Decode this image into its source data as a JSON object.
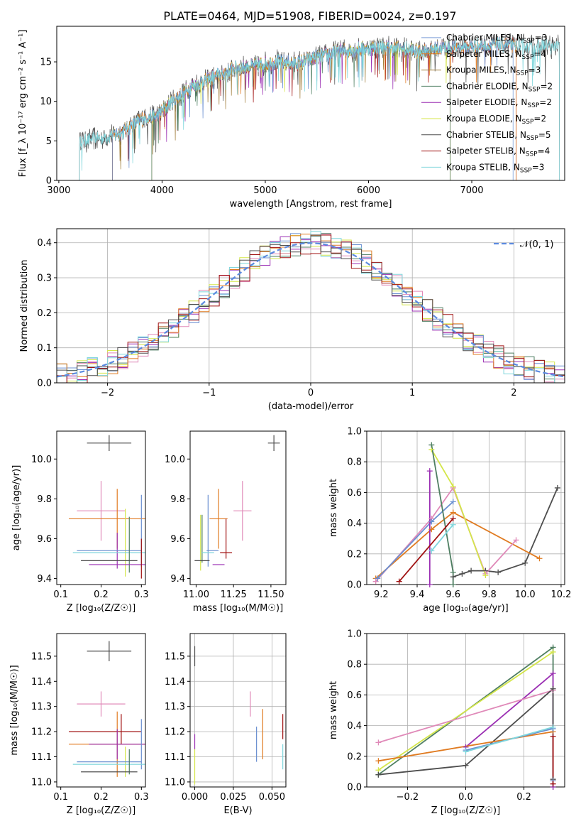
{
  "title": "PLATE=0464, MJD=51908, FIBERID=0024, z=0.197",
  "colors": {
    "chab_miles": "#6a8fd0",
    "salp_miles": "#e07b21",
    "krou_miles": "#a07d3a",
    "chab_elodie": "#4f7f62",
    "salp_elodie": "#9b2fb3",
    "krou_elodie": "#d4e64a",
    "chab_stelib": "#4d4d4d",
    "salp_stelib": "#a01212",
    "krou_stelib": "#7fd6dc",
    "pink": "#e08ab9",
    "normal": "#5b8ae0"
  },
  "legend_spectrum": [
    {
      "key": "chab_miles",
      "label": "Chabrier MILES, N",
      "n": "3"
    },
    {
      "key": "salp_miles",
      "label": "Salpeter MILES, N",
      "n": "4"
    },
    {
      "key": "krou_miles",
      "label": "Kroupa MILES, N",
      "n": "3"
    },
    {
      "key": "chab_elodie",
      "label": "Chabrier ELODIE, N",
      "n": "2"
    },
    {
      "key": "salp_elodie",
      "label": "Salpeter ELODIE, N",
      "n": "2"
    },
    {
      "key": "krou_elodie",
      "label": "Kroupa ELODIE, N",
      "n": "2"
    },
    {
      "key": "chab_stelib",
      "label": "Chabrier STELIB, N",
      "n": "5"
    },
    {
      "key": "salp_stelib",
      "label": "Salpeter STELIB, N",
      "n": "4"
    },
    {
      "key": "krou_stelib",
      "label": "Kroupa STELIB, N",
      "n": "3"
    }
  ],
  "legend_sub": "SSP",
  "legend_normal": "𝒩(0, 1)",
  "chart_data": [
    {
      "id": "spectrum",
      "type": "line",
      "xlabel": "wavelength [Angstrom, rest frame]",
      "ylabel": "Flux [f_λ 10⁻¹⁷ erg cm⁻² s⁻¹ A⁻¹]",
      "xlim": [
        2980,
        7900
      ],
      "ylim": [
        0,
        19.5
      ],
      "xticks": [
        3000,
        4000,
        5000,
        6000,
        7000
      ],
      "yticks": [
        0,
        5,
        10,
        15
      ],
      "x": [
        3200,
        3400,
        3600,
        3800,
        3950,
        4100,
        4300,
        4500,
        4700,
        4900,
        5100,
        5300,
        5500,
        5700,
        5900,
        6100,
        6300,
        6500,
        6700,
        6900,
        7100,
        7300,
        7500,
        7700,
        7850
      ],
      "y": [
        5.0,
        5.3,
        6.0,
        7.8,
        8.2,
        10.0,
        12.0,
        13.0,
        14.2,
        14.5,
        15.0,
        14.8,
        15.6,
        16.3,
        16.6,
        16.9,
        16.7,
        16.3,
        16.8,
        16.9,
        17.0,
        17.2,
        17.0,
        17.0,
        17.0
      ],
      "cutoffs": {
        "chab_miles": [
          3520,
          7400
        ],
        "salp_miles": [
          3520,
          7430
        ],
        "krou_miles": [
          3520,
          6790
        ],
        "salp_stelib": [
          3520,
          7430
        ],
        "chab_elodie": [
          3900,
          6790
        ],
        "salp_elodie": [
          3900,
          6790
        ],
        "krou_elodie": [
          3900,
          6790
        ],
        "chab_stelib": [
          3200,
          7850
        ],
        "krou_stelib": [
          3200,
          7850
        ]
      }
    },
    {
      "id": "residuals",
      "type": "step",
      "xlabel": "(data-model)/error",
      "ylabel": "Normed distribution",
      "xlim": [
        -2.5,
        2.5
      ],
      "ylim": [
        0,
        0.44
      ],
      "xticks": [
        -2,
        -1,
        0,
        1,
        2
      ],
      "yticks": [
        0.0,
        0.1,
        0.2,
        0.3,
        0.4
      ],
      "gaussian": {
        "mu": 0,
        "sigma": 1
      }
    },
    {
      "id": "age_vs_Z",
      "type": "scatter",
      "xlabel": "Z [log₁₀(Z/Z☉)]",
      "ylabel": "age  [log₁₀(age/yr)]",
      "xlim": [
        0.09,
        0.31
      ],
      "ylim": [
        9.37,
        10.14
      ],
      "xticks": [
        0.1,
        0.2,
        0.3
      ],
      "yticks": [
        9.4,
        9.6,
        9.8,
        10.0
      ],
      "points": [
        {
          "key": "chab_stelib",
          "x": 0.22,
          "xerr": 0.055,
          "y": 10.08,
          "yerr": 0.04
        },
        {
          "key": "pink",
          "x": 0.2,
          "xerr": 0.06,
          "y": 9.74,
          "yerr": 0.15
        },
        {
          "key": "salp_miles",
          "x": 0.24,
          "xerr": 0.12,
          "y": 9.7,
          "yerr": 0.15
        },
        {
          "key": "chab_miles",
          "x": 0.3,
          "xerr": 0.0,
          "y": 9.64,
          "yerr": 0.18
        },
        {
          "key": "salp_elodie",
          "x": 0.24,
          "xerr": 0.0,
          "y": 9.54,
          "yerr": 0.09
        },
        {
          "key": "krou_elodie",
          "x": 0.26,
          "xerr": 0.0,
          "y": 9.58,
          "yerr": 0.17
        },
        {
          "key": "chab_miles",
          "x": 0.22,
          "xerr": 0.08,
          "y": 9.54,
          "yerr": 0.0
        },
        {
          "key": "krou_stelib",
          "x": 0.22,
          "xerr": 0.09,
          "y": 9.53,
          "yerr": 0.0
        },
        {
          "key": "chab_elodie",
          "x": 0.27,
          "xerr": 0.0,
          "y": 9.57,
          "yerr": 0.14
        },
        {
          "key": "chab_stelib",
          "x": 0.22,
          "xerr": 0.07,
          "y": 9.49,
          "yerr": 0.0
        },
        {
          "key": "salp_elodie",
          "x": 0.24,
          "xerr": 0.07,
          "y": 9.47,
          "yerr": 0.0
        },
        {
          "key": "salp_stelib",
          "x": 0.3,
          "xerr": 0.0,
          "y": 9.5,
          "yerr": 0.1
        }
      ]
    },
    {
      "id": "age_vs_mass",
      "type": "scatter",
      "xlabel": "mass [log₁₀(M/M☉)]",
      "ylabel": "",
      "xlim": [
        10.96,
        11.6
      ],
      "ylim": [
        9.37,
        10.14
      ],
      "xticks": [
        11.0,
        11.25,
        11.5
      ],
      "yticks": [
        9.4,
        9.6,
        9.8,
        10.0
      ],
      "points": [
        {
          "key": "chab_stelib",
          "x": 11.52,
          "xerr": 0.04,
          "y": 10.08,
          "yerr": 0.04
        },
        {
          "key": "pink",
          "x": 11.31,
          "xerr": 0.06,
          "y": 9.74,
          "yerr": 0.15
        },
        {
          "key": "salp_miles",
          "x": 11.15,
          "xerr": 0.06,
          "y": 9.7,
          "yerr": 0.15
        },
        {
          "key": "chab_miles",
          "x": 11.08,
          "xerr": 0.0,
          "y": 9.64,
          "yerr": 0.18
        },
        {
          "key": "chab_elodie",
          "x": 11.04,
          "xerr": 0.0,
          "y": 9.6,
          "yerr": 0.12
        },
        {
          "key": "krou_elodie",
          "x": 11.03,
          "xerr": 0.0,
          "y": 9.58,
          "yerr": 0.14
        },
        {
          "key": "salp_stelib",
          "x": 11.2,
          "xerr": 0.0,
          "y": 9.6,
          "yerr": 0.1
        },
        {
          "key": "krou_stelib",
          "x": 11.08,
          "xerr": 0.04,
          "y": 9.53,
          "yerr": 0.0
        },
        {
          "key": "chab_miles",
          "x": 11.11,
          "xerr": 0.04,
          "y": 9.54,
          "yerr": 0.0
        },
        {
          "key": "salp_stelib",
          "x": 11.2,
          "xerr": 0.04,
          "y": 9.53,
          "yerr": 0.0
        },
        {
          "key": "chab_stelib",
          "x": 11.04,
          "xerr": 0.05,
          "y": 9.49,
          "yerr": 0.0
        },
        {
          "key": "salp_elodie",
          "x": 11.15,
          "xerr": 0.04,
          "y": 9.47,
          "yerr": 0.0
        }
      ]
    },
    {
      "id": "mw_vs_age",
      "type": "line",
      "xlabel": "age  [log₁₀(age/yr)]",
      "ylabel": "mass weight",
      "xlim": [
        9.12,
        10.22
      ],
      "ylim": [
        0,
        1.0
      ],
      "xticks": [
        9.2,
        9.4,
        9.6,
        9.8,
        10.0,
        10.2
      ],
      "yticks": [
        0.0,
        0.2,
        0.4,
        0.6,
        0.8,
        1.0
      ],
      "series": [
        {
          "key": "chab_stelib",
          "x": [
            9.6,
            9.65,
            9.7,
            9.78,
            9.85,
            10.0,
            10.18
          ],
          "y": [
            0.05,
            0.07,
            0.09,
            0.09,
            0.08,
            0.14,
            0.63
          ]
        },
        {
          "key": "salp_miles",
          "x": [
            9.17,
            9.48,
            9.6,
            10.08
          ],
          "y": [
            0.04,
            0.36,
            0.47,
            0.17
          ]
        },
        {
          "key": "pink",
          "x": [
            9.17,
            9.48,
            9.6,
            9.78,
            9.95
          ],
          "y": [
            0.02,
            0.43,
            0.63,
            0.07,
            0.29
          ]
        },
        {
          "key": "chab_miles",
          "x": [
            9.18,
            9.48,
            9.6
          ],
          "y": [
            0.04,
            0.41,
            0.54
          ]
        },
        {
          "key": "krou_elodie",
          "x": [
            9.48,
            9.6,
            9.78
          ],
          "y": [
            0.88,
            0.64,
            0.06
          ]
        },
        {
          "key": "chab_elodie",
          "x": [
            9.48,
            9.6,
            9.6
          ],
          "y": [
            0.91,
            0.08,
            0.0
          ]
        },
        {
          "key": "salp_elodie",
          "x": [
            9.47,
            9.47
          ],
          "y": [
            0.74,
            0.0
          ]
        },
        {
          "key": "salp_stelib",
          "x": [
            9.3,
            9.6
          ],
          "y": [
            0.02,
            0.43
          ]
        },
        {
          "key": "krou_stelib",
          "x": [
            9.48,
            9.6
          ],
          "y": [
            0.22,
            0.39
          ]
        }
      ]
    },
    {
      "id": "mass_vs_Z",
      "type": "scatter",
      "xlabel": "Z [log₁₀(Z/Z☉)]",
      "ylabel": "mass [log₁₀(M/M☉)]",
      "xlim": [
        0.09,
        0.31
      ],
      "ylim": [
        10.98,
        11.59
      ],
      "xticks": [
        0.1,
        0.2,
        0.3
      ],
      "yticks": [
        11.0,
        11.1,
        11.2,
        11.3,
        11.4,
        11.5
      ],
      "points": [
        {
          "key": "chab_stelib",
          "x": 0.22,
          "xerr": 0.055,
          "y": 11.52,
          "yerr": 0.04
        },
        {
          "key": "pink",
          "x": 0.2,
          "xerr": 0.06,
          "y": 11.31,
          "yerr": 0.05
        },
        {
          "key": "salp_miles",
          "x": 0.24,
          "xerr": 0.12,
          "y": 11.15,
          "yerr": 0.13
        },
        {
          "key": "salp_stelib",
          "x": 0.21,
          "xerr": 0.09,
          "y": 11.2,
          "yerr": 0.0
        },
        {
          "key": "salp_stelib",
          "x": 0.25,
          "xerr": 0.0,
          "y": 11.21,
          "yerr": 0.06
        },
        {
          "key": "salp_elodie",
          "x": 0.24,
          "xerr": 0.07,
          "y": 11.15,
          "yerr": 0.06
        },
        {
          "key": "chab_miles",
          "x": 0.3,
          "xerr": 0.0,
          "y": 11.15,
          "yerr": 0.1
        },
        {
          "key": "krou_elodie",
          "x": 0.26,
          "xerr": 0.0,
          "y": 11.08,
          "yerr": 0.06
        },
        {
          "key": "chab_miles",
          "x": 0.22,
          "xerr": 0.08,
          "y": 11.08,
          "yerr": 0.0
        },
        {
          "key": "krou_stelib",
          "x": 0.22,
          "xerr": 0.09,
          "y": 11.07,
          "yerr": 0.0
        },
        {
          "key": "chab_elodie",
          "x": 0.27,
          "xerr": 0.0,
          "y": 11.08,
          "yerr": 0.05
        },
        {
          "key": "chab_stelib",
          "x": 0.22,
          "xerr": 0.07,
          "y": 11.04,
          "yerr": 0.0
        }
      ]
    },
    {
      "id": "mass_vs_EBV",
      "type": "scatter",
      "xlabel": "E(B-V)",
      "ylabel": "",
      "xlim": [
        -0.003,
        0.059
      ],
      "ylim": [
        10.98,
        11.59
      ],
      "xticks": [
        0.0,
        0.025,
        0.05
      ],
      "yticks": [
        11.0,
        11.1,
        11.2,
        11.3,
        11.4,
        11.5
      ],
      "points": [
        {
          "key": "chab_stelib",
          "x": 0.0,
          "xerr": 0.0,
          "y": 11.5,
          "yerr": 0.04
        },
        {
          "key": "salp_elodie",
          "x": 0.0,
          "xerr": 0.0,
          "y": 11.16,
          "yerr": 0.03
        },
        {
          "key": "krou_elodie",
          "x": 0.0,
          "xerr": 0.0,
          "y": 11.06,
          "yerr": 0.07
        },
        {
          "key": "pink",
          "x": 0.036,
          "xerr": 0.0,
          "y": 11.31,
          "yerr": 0.05
        },
        {
          "key": "chab_miles",
          "x": 0.04,
          "xerr": 0.0,
          "y": 11.15,
          "yerr": 0.07
        },
        {
          "key": "salp_miles",
          "x": 0.044,
          "xerr": 0.0,
          "y": 11.19,
          "yerr": 0.1
        },
        {
          "key": "salp_stelib",
          "x": 0.057,
          "xerr": 0.0,
          "y": 11.22,
          "yerr": 0.05
        },
        {
          "key": "krou_stelib",
          "x": 0.057,
          "xerr": 0.0,
          "y": 11.1,
          "yerr": 0.05
        }
      ]
    },
    {
      "id": "mw_vs_Z",
      "type": "line",
      "xlabel": "Z [log₁₀(Z/Z☉)]",
      "ylabel": "mass weight",
      "xlim": [
        -0.34,
        0.34
      ],
      "ylim": [
        0,
        1.0
      ],
      "xticks": [
        -0.2,
        0.0,
        0.2
      ],
      "yticks": [
        0.0,
        0.2,
        0.4,
        0.6,
        0.8,
        1.0
      ],
      "series": [
        {
          "key": "chab_elodie",
          "x": [
            -0.3,
            0.3,
            0.3
          ],
          "y": [
            0.08,
            0.91,
            0.0
          ]
        },
        {
          "key": "krou_elodie",
          "x": [
            -0.3,
            0.3
          ],
          "y": [
            0.11,
            0.88
          ]
        },
        {
          "key": "salp_elodie",
          "x": [
            0.0,
            0.3,
            0.3
          ],
          "y": [
            0.26,
            0.74,
            0.0
          ]
        },
        {
          "key": "pink",
          "x": [
            -0.3,
            0.3
          ],
          "y": [
            0.29,
            0.63
          ]
        },
        {
          "key": "chab_stelib",
          "x": [
            -0.3,
            0.0,
            0.3,
            0.3
          ],
          "y": [
            0.08,
            0.14,
            0.64,
            0.05
          ]
        },
        {
          "key": "salp_miles",
          "x": [
            -0.3,
            0.3,
            0.3
          ],
          "y": [
            0.17,
            0.36,
            0.04
          ]
        },
        {
          "key": "chab_miles",
          "x": [
            0.0,
            0.3,
            0.3
          ],
          "y": [
            0.24,
            0.38,
            0.04
          ]
        },
        {
          "key": "krou_stelib",
          "x": [
            0.0,
            0.3
          ],
          "y": [
            0.23,
            0.39
          ]
        },
        {
          "key": "salp_stelib",
          "x": [
            0.3,
            0.3
          ],
          "y": [
            0.33,
            0.02
          ]
        }
      ]
    }
  ]
}
